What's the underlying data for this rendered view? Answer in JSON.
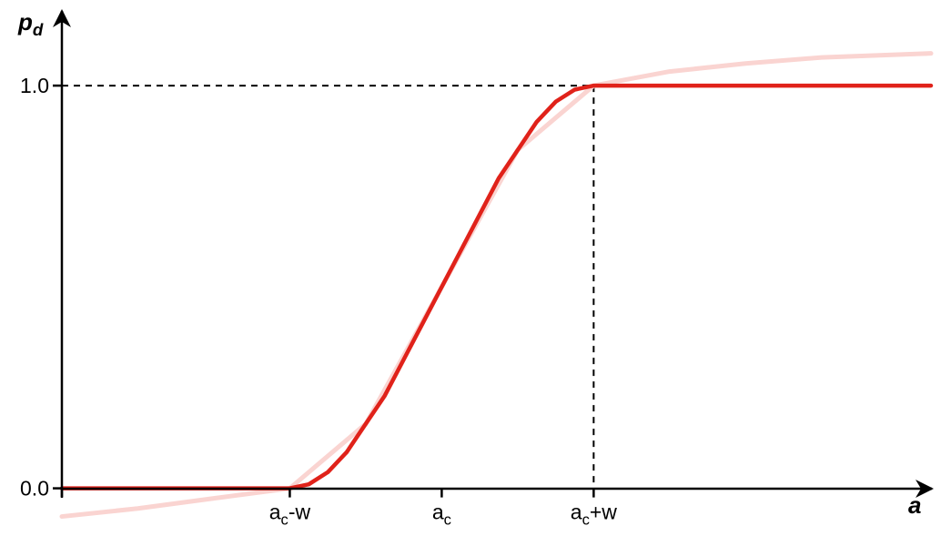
{
  "chart_data": {
    "type": "line",
    "x_label": "a",
    "y_label": "pd",
    "xlim": [
      -2.5,
      3.25
    ],
    "ylim": [
      -0.08,
      1.19
    ],
    "xticks": [
      {
        "value": -1,
        "label": "ac-w"
      },
      {
        "value": 0,
        "label": "ac"
      },
      {
        "value": 1,
        "label": "ac+w"
      }
    ],
    "yticks": [
      {
        "value": 0,
        "label": "0.0"
      },
      {
        "value": 1,
        "label": "1.0"
      }
    ],
    "dashed_y": [
      1
    ],
    "dashed_x": [
      1
    ],
    "series": [
      {
        "color": "#fad4d1",
        "x": [
          -2.5,
          -2,
          -1.5,
          -1,
          -0.5,
          0,
          0.5,
          1,
          1.5,
          2,
          2.5,
          3.22
        ],
        "values": [
          -0.07,
          -0.05,
          -0.025,
          0,
          0.16,
          0.5,
          0.84,
          1,
          1.035,
          1.055,
          1.07,
          1.08
        ]
      },
      {
        "color": "#e0221a",
        "x": [
          -2.5,
          -1,
          -0.875,
          -0.75,
          -0.625,
          -0.5,
          -0.375,
          -0.25,
          -0.125,
          0,
          0.125,
          0.25,
          0.375,
          0.5,
          0.625,
          0.75,
          0.875,
          1,
          3.22
        ],
        "values": [
          0,
          0,
          0.01,
          0.04,
          0.09,
          0.16,
          0.23,
          0.32,
          0.41,
          0.5,
          0.59,
          0.68,
          0.77,
          0.84,
          0.91,
          0.96,
          0.99,
          1,
          1
        ]
      }
    ]
  }
}
